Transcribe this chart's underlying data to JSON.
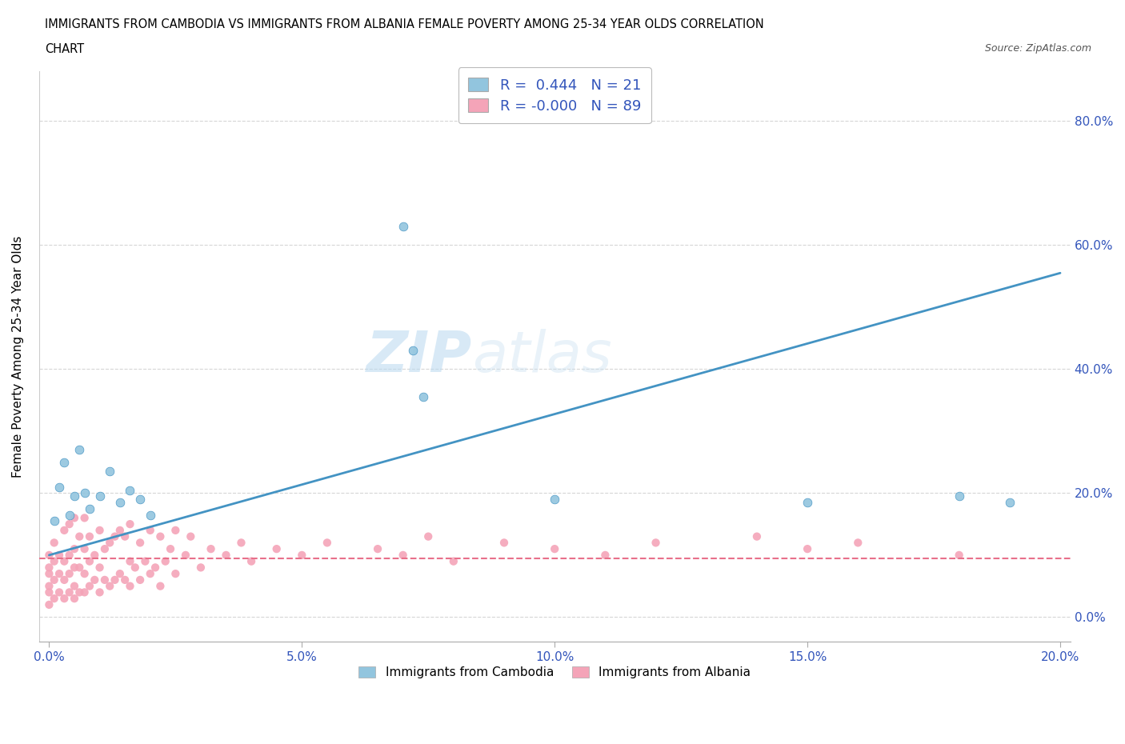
{
  "title_line1": "IMMIGRANTS FROM CAMBODIA VS IMMIGRANTS FROM ALBANIA FEMALE POVERTY AMONG 25-34 YEAR OLDS CORRELATION",
  "title_line2": "CHART",
  "source_text": "Source: ZipAtlas.com",
  "ylabel": "Female Poverty Among 25-34 Year Olds",
  "xlim": [
    0.0,
    0.22
  ],
  "ylim": [
    -0.04,
    0.88
  ],
  "cambodia_color": "#92c5de",
  "albania_color": "#f4a4b8",
  "cambodia_trend_color": "#4393c3",
  "albania_trend_color": "#e8708a",
  "r_cambodia": 0.444,
  "n_cambodia": 21,
  "r_albania": -0.0,
  "n_albania": 89,
  "watermark_zip": "ZIP",
  "watermark_atlas": "atlas",
  "cambodia_x": [
    0.001,
    0.002,
    0.003,
    0.004,
    0.005,
    0.006,
    0.007,
    0.008,
    0.01,
    0.012,
    0.014,
    0.016,
    0.018,
    0.02,
    0.07,
    0.072,
    0.074,
    0.1,
    0.15,
    0.18,
    0.19
  ],
  "cambodia_y": [
    0.155,
    0.21,
    0.25,
    0.165,
    0.195,
    0.27,
    0.2,
    0.175,
    0.195,
    0.235,
    0.185,
    0.205,
    0.19,
    0.165,
    0.63,
    0.43,
    0.355,
    0.19,
    0.185,
    0.195,
    0.185
  ],
  "albania_x": [
    0.0,
    0.0,
    0.0,
    0.0,
    0.0,
    0.0,
    0.001,
    0.001,
    0.001,
    0.001,
    0.002,
    0.002,
    0.002,
    0.003,
    0.003,
    0.003,
    0.003,
    0.004,
    0.004,
    0.004,
    0.004,
    0.005,
    0.005,
    0.005,
    0.005,
    0.005,
    0.006,
    0.006,
    0.006,
    0.007,
    0.007,
    0.007,
    0.007,
    0.008,
    0.008,
    0.008,
    0.009,
    0.009,
    0.01,
    0.01,
    0.01,
    0.011,
    0.011,
    0.012,
    0.012,
    0.013,
    0.013,
    0.014,
    0.014,
    0.015,
    0.015,
    0.016,
    0.016,
    0.016,
    0.017,
    0.018,
    0.018,
    0.019,
    0.02,
    0.02,
    0.021,
    0.022,
    0.022,
    0.023,
    0.024,
    0.025,
    0.025,
    0.027,
    0.028,
    0.03,
    0.032,
    0.035,
    0.038,
    0.04,
    0.045,
    0.05,
    0.055,
    0.065,
    0.07,
    0.075,
    0.08,
    0.09,
    0.1,
    0.11,
    0.12,
    0.14,
    0.15,
    0.16,
    0.18
  ],
  "albania_y": [
    0.02,
    0.04,
    0.05,
    0.07,
    0.08,
    0.1,
    0.03,
    0.06,
    0.09,
    0.12,
    0.04,
    0.07,
    0.1,
    0.03,
    0.06,
    0.09,
    0.14,
    0.04,
    0.07,
    0.1,
    0.15,
    0.03,
    0.05,
    0.08,
    0.11,
    0.16,
    0.04,
    0.08,
    0.13,
    0.04,
    0.07,
    0.11,
    0.16,
    0.05,
    0.09,
    0.13,
    0.06,
    0.1,
    0.04,
    0.08,
    0.14,
    0.06,
    0.11,
    0.05,
    0.12,
    0.06,
    0.13,
    0.07,
    0.14,
    0.06,
    0.13,
    0.05,
    0.09,
    0.15,
    0.08,
    0.06,
    0.12,
    0.09,
    0.07,
    0.14,
    0.08,
    0.05,
    0.13,
    0.09,
    0.11,
    0.07,
    0.14,
    0.1,
    0.13,
    0.08,
    0.11,
    0.1,
    0.12,
    0.09,
    0.11,
    0.1,
    0.12,
    0.11,
    0.1,
    0.13,
    0.09,
    0.12,
    0.11,
    0.1,
    0.12,
    0.13,
    0.11,
    0.12,
    0.1
  ],
  "trend_cam_x0": 0.0,
  "trend_cam_y0": 0.1,
  "trend_cam_x1": 0.2,
  "trend_cam_y1": 0.555,
  "trend_alb_y": 0.095
}
